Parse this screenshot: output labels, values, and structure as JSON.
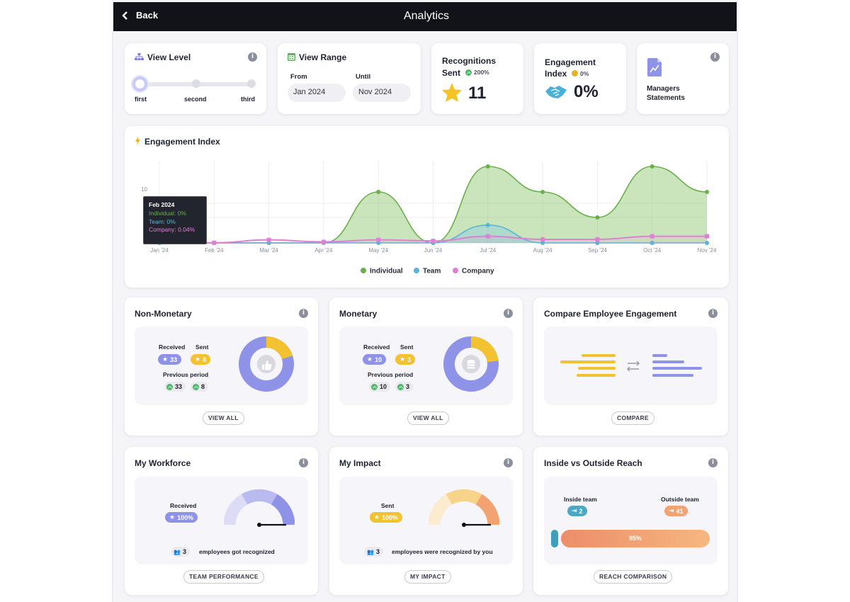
{
  "header": {
    "back_label": "Back",
    "title": "Analytics"
  },
  "view_level": {
    "title": "View Level",
    "levels": [
      "first",
      "second",
      "third"
    ],
    "selected": "first"
  },
  "view_range": {
    "title": "View Range",
    "from_label": "From",
    "from_value": "Jan 2024",
    "until_label": "Until",
    "until_value": "Nov 2024"
  },
  "recognitions": {
    "title_line1": "Recognitions",
    "title_line2": "Sent",
    "change": "200%",
    "value": "11"
  },
  "engagement_index_tile": {
    "title_line1": "Engagement",
    "title_line2": "Index",
    "change": "0%",
    "value": "0%"
  },
  "managers_statements": {
    "line1": "Managers",
    "line2": "Statements"
  },
  "engagement_chart": {
    "title": "Engagement Index",
    "tooltip": {
      "month": "Feb 2024",
      "individual": "Individual: 0%",
      "team": "Team: 0%",
      "company": "Company: 0.04%"
    }
  },
  "chart_data": {
    "type": "area",
    "title": "Engagement Index",
    "categories": [
      "Jan '24",
      "Feb '24",
      "Mar '24",
      "Apr '24",
      "May '24",
      "Jun '24",
      "Jul '24",
      "Aug '24",
      "Sep '24",
      "Oct '24",
      "Nov '24"
    ],
    "y_tick_labels": [
      "10"
    ],
    "ylim": [
      0,
      15
    ],
    "series": [
      {
        "name": "Individual",
        "color": "#6ab04c",
        "values": [
          0,
          0,
          0,
          0,
          10,
          0,
          15,
          10,
          5,
          15,
          10
        ]
      },
      {
        "name": "Team",
        "color": "#5ab4d6",
        "values": [
          0,
          0,
          0,
          0,
          0,
          0,
          3.5,
          0,
          0,
          0,
          0
        ]
      },
      {
        "name": "Company",
        "color": "#dd80d6",
        "values": [
          0.2,
          0.04,
          0.6,
          0.2,
          0.6,
          0.4,
          1.3,
          0.7,
          0.7,
          1.3,
          1.3
        ]
      }
    ],
    "legend_position": "bottom",
    "grid": true
  },
  "non_monetary": {
    "title": "Non-Monetary",
    "received_label": "Received",
    "sent_label": "Sent",
    "received": "33",
    "sent": "8",
    "previous_label": "Previous period",
    "prev_received": "33",
    "prev_sent": "8",
    "button": "VIEW ALL",
    "donut": {
      "received_fraction": 0.8,
      "sent_fraction": 0.2
    }
  },
  "monetary": {
    "title": "Monetary",
    "received_label": "Received",
    "sent_label": "Sent",
    "received": "10",
    "sent": "3",
    "previous_label": "Previous period",
    "prev_received": "10",
    "prev_sent": "3",
    "button": "VIEW ALL",
    "donut": {
      "received_fraction": 0.77,
      "sent_fraction": 0.23
    }
  },
  "compare": {
    "title": "Compare Employee Engagement",
    "button": "COMPARE"
  },
  "workforce": {
    "title": "My Workforce",
    "badge_label": "Received",
    "badge_value": "100%",
    "count": "3",
    "footer": "employees got recognized",
    "button": "TEAM PERFORMANCE",
    "gauge_fraction": 1.0
  },
  "impact": {
    "title": "My Impact",
    "badge_label": "Sent",
    "badge_value": "100%",
    "count": "3",
    "footer": "employees were recognized by you",
    "button": "MY IMPACT",
    "gauge_fraction": 1.0
  },
  "reach": {
    "title": "Inside vs Outside Reach",
    "inside_label": "Inside team",
    "inside_value": "2",
    "outside_label": "Outside team",
    "outside_value": "41",
    "bar_label": "95%",
    "outside_fraction": 0.95,
    "button": "REACH COMPARISON"
  },
  "colors": {
    "purple": "#8f93e8",
    "yellow": "#f2c230",
    "orange": "#f3a272",
    "teal": "#3f9fb8",
    "green": "#6ab04c"
  }
}
